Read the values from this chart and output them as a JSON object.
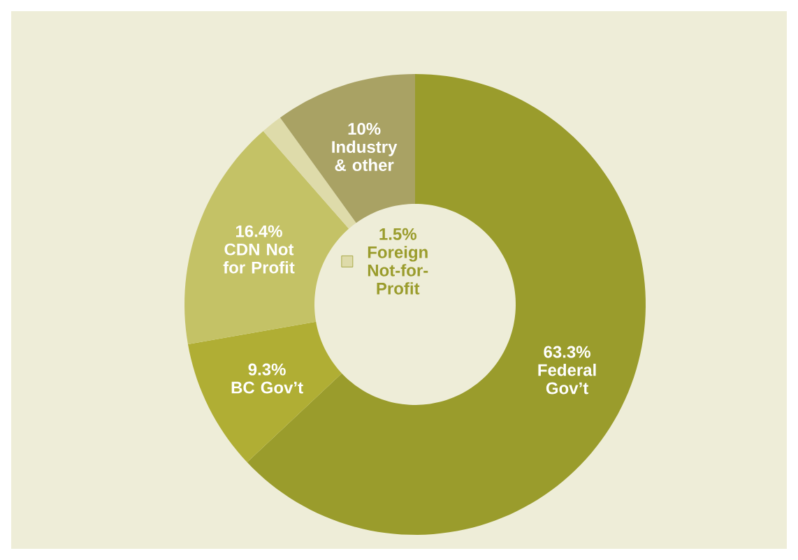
{
  "chart_data": {
    "type": "donut",
    "categories": [
      "Federal Gov’t",
      "BC Gov’t",
      "CDN Not for Profit",
      "Foreign Not-for-Profit",
      "Industry & other"
    ],
    "values": [
      63.3,
      9.3,
      16.4,
      1.5,
      10
    ],
    "value_labels": [
      "63.3%",
      "9.3%",
      "16.4%",
      "1.5%",
      "10%"
    ],
    "colors": [
      "#9a9c2c",
      "#b0ae34",
      "#c4c266",
      "#dedbaa",
      "#a9a264"
    ]
  }
}
